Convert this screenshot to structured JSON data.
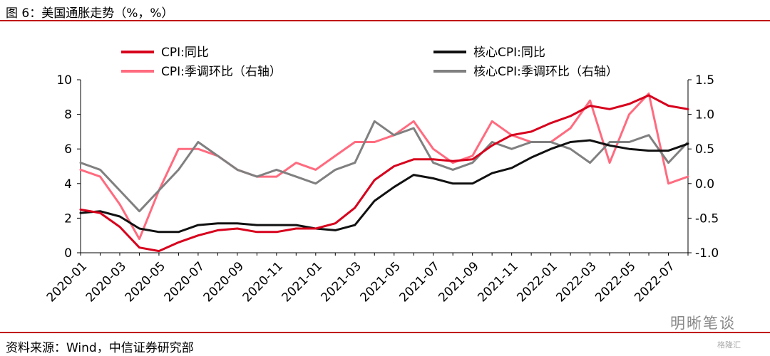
{
  "figure": {
    "title": "图 6：美国通胀走势（%，%）",
    "source": "资料来源：Wind，中信证券研究部",
    "watermark": "明晰笔谈",
    "watermark_logo": "格隆汇"
  },
  "chart_data": {
    "type": "line",
    "title": "",
    "x": [
      "2020-01",
      "2020-02",
      "2020-03",
      "2020-04",
      "2020-05",
      "2020-06",
      "2020-07",
      "2020-08",
      "2020-09",
      "2020-10",
      "2020-11",
      "2020-12",
      "2021-01",
      "2021-02",
      "2021-03",
      "2021-04",
      "2021-05",
      "2021-06",
      "2021-07",
      "2021-08",
      "2021-09",
      "2021-10",
      "2021-11",
      "2021-12",
      "2022-01",
      "2022-02",
      "2022-03",
      "2022-04",
      "2022-05",
      "2022-06",
      "2022-07",
      "2022-08"
    ],
    "x_tick_labels": [
      "2020-01",
      "2020-03",
      "2020-05",
      "2020-07",
      "2020-09",
      "2020-11",
      "2021-01",
      "2021-03",
      "2021-05",
      "2021-07",
      "2021-09",
      "2021-11",
      "2022-01",
      "2022-03",
      "2022-05",
      "2022-07"
    ],
    "y_left": {
      "ylim": [
        0,
        10
      ],
      "ticks": [
        "0",
        "2",
        "4",
        "6",
        "8",
        "10"
      ]
    },
    "y_right": {
      "ylim": [
        -1.0,
        1.5
      ],
      "ticks": [
        "-1.0",
        "-0.5",
        "0.0",
        "0.5",
        "1.0",
        "1.5"
      ]
    },
    "legend_placement": "top",
    "series": [
      {
        "name": "CPI:同比",
        "axis": "left",
        "color": "#d7001c",
        "width": 3,
        "values": [
          2.5,
          2.3,
          1.5,
          0.3,
          0.1,
          0.6,
          1.0,
          1.3,
          1.4,
          1.2,
          1.2,
          1.4,
          1.4,
          1.7,
          2.6,
          4.2,
          5.0,
          5.4,
          5.4,
          5.3,
          5.4,
          6.2,
          6.8,
          7.0,
          7.5,
          7.9,
          8.5,
          8.3,
          8.6,
          9.1,
          8.5,
          8.3
        ]
      },
      {
        "name": "核心CPI:同比",
        "axis": "left",
        "color": "#111111",
        "width": 3,
        "values": [
          2.3,
          2.4,
          2.1,
          1.4,
          1.2,
          1.2,
          1.6,
          1.7,
          1.7,
          1.6,
          1.6,
          1.6,
          1.4,
          1.3,
          1.6,
          3.0,
          3.8,
          4.5,
          4.3,
          4.0,
          4.0,
          4.6,
          4.9,
          5.5,
          6.0,
          6.4,
          6.5,
          6.2,
          6.0,
          5.9,
          5.9,
          6.3
        ]
      },
      {
        "name": "CPI:季调环比（右轴）",
        "axis": "right",
        "color": "#ff6b7f",
        "width": 3,
        "values": [
          0.2,
          0.1,
          -0.3,
          -0.8,
          -0.1,
          0.5,
          0.5,
          0.4,
          0.2,
          0.1,
          0.1,
          0.3,
          0.2,
          0.4,
          0.6,
          0.6,
          0.7,
          0.9,
          0.5,
          0.3,
          0.4,
          0.9,
          0.7,
          0.6,
          0.6,
          0.8,
          1.2,
          0.3,
          1.0,
          1.3,
          0.0,
          0.1
        ]
      },
      {
        "name": "核心CPI:季调环比（右轴）",
        "axis": "right",
        "color": "#808080",
        "width": 3,
        "values": [
          0.3,
          0.2,
          -0.1,
          -0.4,
          -0.1,
          0.2,
          0.6,
          0.4,
          0.2,
          0.1,
          0.2,
          0.1,
          0.0,
          0.2,
          0.3,
          0.9,
          0.7,
          0.8,
          0.3,
          0.2,
          0.3,
          0.6,
          0.5,
          0.6,
          0.6,
          0.5,
          0.3,
          0.6,
          0.6,
          0.7,
          0.3,
          0.6
        ]
      }
    ]
  }
}
